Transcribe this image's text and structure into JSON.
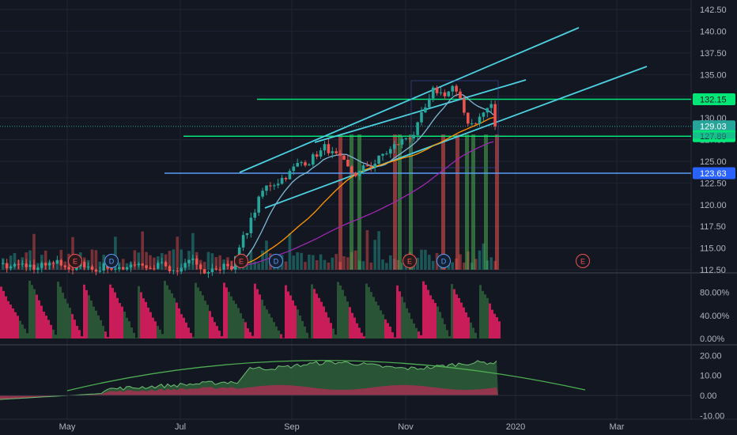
{
  "chart_data": [
    {
      "type": "candlestick",
      "title": "",
      "price_axis": [
        "142.50",
        "140.00",
        "137.50",
        "135.00",
        "132.50",
        "130.00",
        "127.50",
        "125.00",
        "122.50",
        "120.00",
        "117.50",
        "115.00",
        "112.50"
      ],
      "time_axis": [
        "May",
        "Jul",
        "Sep",
        "Nov",
        "2020",
        "Mar"
      ],
      "ylim": [
        112.5,
        142.5
      ],
      "grid": true,
      "price_tags": [
        {
          "value": "132.15",
          "color": "#00e676",
          "text_color": "#131722"
        },
        {
          "value": "129.03",
          "color": "#26a69a",
          "text_color": "#ffffff"
        },
        {
          "value": "127.89",
          "color": "#00e676",
          "text_color": "#131722"
        },
        {
          "value": "123.63",
          "color": "#2962ff",
          "text_color": "#ffffff"
        }
      ],
      "horizontal_levels": [
        132.15,
        127.89,
        123.63
      ],
      "trend_channels": "three parallel rising cyan trendlines",
      "events": [
        {
          "label": "E",
          "kind": "earnings"
        },
        {
          "label": "D",
          "kind": "dividend"
        },
        {
          "label": "E",
          "kind": "earnings"
        },
        {
          "label": "D",
          "kind": "dividend"
        },
        {
          "label": "E",
          "kind": "earnings"
        },
        {
          "label": "D",
          "kind": "dividend"
        },
        {
          "label": "E",
          "kind": "earnings",
          "upcoming": true
        }
      ],
      "candles_approx": {
        "start_price": 112.8,
        "jump_to": 122,
        "sep_level": 126,
        "oct_level": 127,
        "nov_high": 134.5,
        "last_close": 129.03
      },
      "colors": {
        "up": "#26a69a",
        "down": "#ef5350",
        "background": "#131722"
      }
    },
    {
      "type": "bar",
      "title": "",
      "ylabel_ticks": [
        "80.00%",
        "40.00%",
        "0.00%"
      ],
      "ylim": [
        0,
        100
      ],
      "series": [
        {
          "color": "#e91e63"
        },
        {
          "color": "#2e5f3a"
        }
      ]
    },
    {
      "type": "area",
      "title": "",
      "ylabel_ticks": [
        "20.00",
        "10.00",
        "0.00",
        "-10.00"
      ],
      "ylim": [
        -10,
        25
      ],
      "series": [
        {
          "color": "#4caf50"
        },
        {
          "color": "#e91e63"
        },
        {
          "color": "#4caf50"
        }
      ]
    }
  ]
}
